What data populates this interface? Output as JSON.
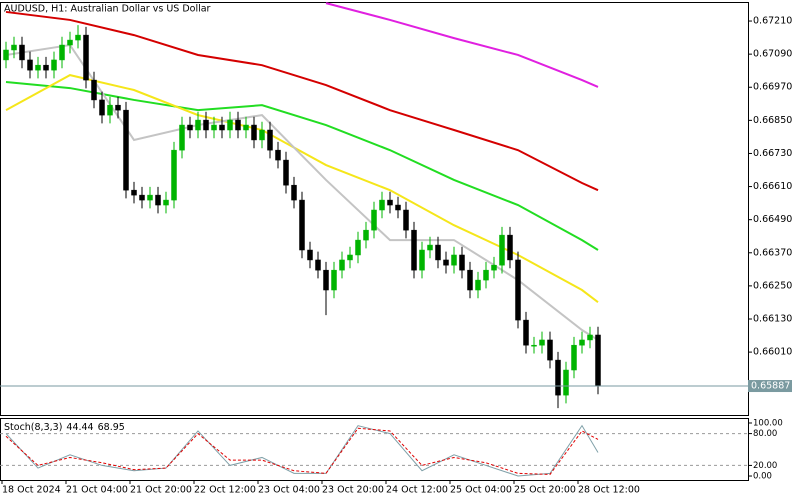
{
  "chart_data": [
    {
      "type": "candlestick",
      "title": "AUDUSD, H1:  Australian Dollar vs US Dollar",
      "categories": [
        "18 Oct 2024",
        null,
        null,
        null,
        null,
        null,
        null,
        null,
        "21 Oct 04:00",
        null,
        null,
        null,
        null,
        null,
        null,
        null,
        "21 Oct 20:00",
        null,
        null,
        null,
        null,
        null,
        null,
        null,
        "22 Oct 12:00",
        null,
        null,
        null,
        null,
        null,
        null,
        null,
        "23 Oct 04:00",
        null,
        null,
        null,
        null,
        null,
        null,
        null,
        "23 Oct 20:00",
        null,
        null,
        null,
        null,
        null,
        null,
        null,
        "24 Oct 12:00",
        null,
        null,
        null,
        null,
        null,
        null,
        null,
        "25 Oct 04:00",
        null,
        null,
        null,
        null,
        null,
        null,
        null,
        "25 Oct 20:00",
        null,
        null,
        null,
        null,
        null,
        null,
        null,
        "28 Oct 12:00",
        null,
        null
      ],
      "open": [
        0.67069,
        0.67105,
        0.67123,
        0.67069,
        0.67032,
        0.6705,
        0.67032,
        0.67069,
        0.67123,
        0.67141,
        0.67159,
        0.66996,
        0.66924,
        0.66869,
        0.66905,
        0.66887,
        0.66597,
        0.66579,
        0.66561,
        0.66579,
        0.66543,
        0.66561,
        0.66742,
        0.66833,
        0.66815,
        0.66851,
        0.66815,
        0.66833,
        0.66815,
        0.66851,
        0.66815,
        0.66833,
        0.66779,
        0.66815,
        0.66742,
        0.66706,
        0.66615,
        0.66561,
        0.6638,
        0.66344,
        0.66307,
        0.66235,
        0.66307,
        0.66344,
        0.66362,
        0.66416,
        0.66452,
        0.66525,
        0.66561,
        0.66543,
        0.66525,
        0.66452,
        0.66307,
        0.6638,
        0.66398,
        0.66344,
        0.66325,
        0.66362,
        0.66307,
        0.66235,
        0.66271,
        0.66307,
        0.66325,
        0.66434,
        0.66344,
        0.66126,
        0.66035,
        0.66035,
        0.66054,
        0.65981,
        0.65854,
        0.65945,
        0.66035,
        0.66054,
        0.66072
      ],
      "high": [
        0.67135,
        0.67153,
        0.67153,
        0.67099,
        0.6708,
        0.6708,
        0.67099,
        0.67153,
        0.67171,
        0.67195,
        0.67189,
        0.67026,
        0.66954,
        0.66935,
        0.66935,
        0.66917,
        0.66627,
        0.66609,
        0.66609,
        0.66609,
        0.66591,
        0.66772,
        0.66863,
        0.66863,
        0.66881,
        0.66881,
        0.66863,
        0.66863,
        0.66881,
        0.66881,
        0.66863,
        0.66863,
        0.66845,
        0.66845,
        0.66772,
        0.66736,
        0.66645,
        0.66591,
        0.6641,
        0.66374,
        0.66337,
        0.66337,
        0.66374,
        0.66392,
        0.66446,
        0.66482,
        0.66555,
        0.66591,
        0.66591,
        0.66573,
        0.66555,
        0.66482,
        0.6641,
        0.66428,
        0.66428,
        0.66374,
        0.66392,
        0.66392,
        0.66337,
        0.66301,
        0.66337,
        0.66355,
        0.66464,
        0.66464,
        0.66374,
        0.66156,
        0.66065,
        0.66084,
        0.66084,
        0.66011,
        0.65975,
        0.66065,
        0.66084,
        0.66102,
        0.66102
      ],
      "low": [
        0.67039,
        0.67075,
        0.67039,
        0.67002,
        0.67002,
        0.67002,
        0.67002,
        0.67039,
        0.67093,
        0.67111,
        0.66966,
        0.66894,
        0.66839,
        0.66839,
        0.66857,
        0.66567,
        0.66549,
        0.66531,
        0.66531,
        0.66513,
        0.66513,
        0.66531,
        0.66712,
        0.66785,
        0.66785,
        0.66785,
        0.66785,
        0.66785,
        0.66785,
        0.66785,
        0.66785,
        0.66749,
        0.66749,
        0.66712,
        0.66676,
        0.66585,
        0.66531,
        0.6635,
        0.66314,
        0.66277,
        0.66144,
        0.66205,
        0.66277,
        0.66314,
        0.66332,
        0.66386,
        0.66422,
        0.66495,
        0.66513,
        0.66495,
        0.66422,
        0.66277,
        0.66277,
        0.6635,
        0.66314,
        0.66295,
        0.66295,
        0.66277,
        0.66205,
        0.66205,
        0.66241,
        0.66277,
        0.66295,
        0.66314,
        0.66096,
        0.66005,
        0.66005,
        0.66005,
        0.65951,
        0.65807,
        0.65824,
        0.65915,
        0.66005,
        0.66024,
        0.65857
      ],
      "close": [
        0.67105,
        0.67123,
        0.67069,
        0.67032,
        0.6705,
        0.67032,
        0.67069,
        0.67123,
        0.67141,
        0.67159,
        0.66996,
        0.66924,
        0.66869,
        0.66905,
        0.66887,
        0.66597,
        0.66579,
        0.66561,
        0.66579,
        0.66543,
        0.66561,
        0.66742,
        0.66833,
        0.66815,
        0.66851,
        0.66815,
        0.66833,
        0.66815,
        0.66851,
        0.66815,
        0.66833,
        0.66779,
        0.66815,
        0.66742,
        0.66706,
        0.66615,
        0.66561,
        0.6638,
        0.66344,
        0.66307,
        0.66235,
        0.66307,
        0.66344,
        0.66362,
        0.66416,
        0.66452,
        0.66525,
        0.66561,
        0.66543,
        0.66525,
        0.66452,
        0.66307,
        0.6638,
        0.66398,
        0.66344,
        0.66325,
        0.66362,
        0.66307,
        0.66235,
        0.66271,
        0.66307,
        0.66325,
        0.66434,
        0.66344,
        0.66126,
        0.66035,
        0.66035,
        0.66054,
        0.65981,
        0.65854,
        0.65945,
        0.66035,
        0.66054,
        0.66072,
        0.65887
      ],
      "up_color": "#00b400",
      "down_color": "#000000",
      "series": [
        {
          "color": "#e020e0",
          "x": [
            40,
            48,
            56,
            64,
            72,
            74
          ],
          "values": [
            0.67275,
            0.67214,
            0.67148,
            0.67087,
            0.66996,
            0.66971
          ]
        },
        {
          "color": "#d40000",
          "x": [
            0,
            8,
            16,
            24,
            32,
            40,
            48,
            56,
            64,
            72,
            74
          ],
          "values": [
            0.67243,
            0.67214,
            0.67159,
            0.67087,
            0.6705,
            0.66978,
            0.66887,
            0.66815,
            0.66742,
            0.66623,
            0.66597
          ]
        },
        {
          "color": "#22dd22",
          "x": [
            0,
            8,
            16,
            24,
            32,
            40,
            48,
            56,
            64,
            72,
            74
          ],
          "values": [
            0.66989,
            0.66967,
            0.66924,
            0.66887,
            0.66905,
            0.66833,
            0.66742,
            0.66634,
            0.66543,
            0.66416,
            0.6638
          ]
        },
        {
          "color": "#f5e61a",
          "x": [
            0,
            8,
            16,
            24,
            32,
            40,
            48,
            56,
            64,
            72,
            74
          ],
          "values": [
            0.66887,
            0.67014,
            0.6696,
            0.66869,
            0.66815,
            0.66688,
            0.66597,
            0.6647,
            0.66362,
            0.66235,
            0.66191
          ]
        },
        {
          "color": "#c4c4c4",
          "x": [
            0,
            8,
            16,
            24,
            32,
            40,
            48,
            56,
            64,
            72,
            74
          ],
          "values": [
            0.67087,
            0.67123,
            0.66779,
            0.66833,
            0.66869,
            0.66634,
            0.66416,
            0.66416,
            0.66271,
            0.6609,
            0.66054
          ]
        }
      ],
      "last_price": {
        "value": 0.65887,
        "label": "0.65887"
      },
      "ylim": [
        0.65782,
        0.67279
      ],
      "yticks": [
        {
          "value": 0.6721,
          "label": "0.67210"
        },
        {
          "value": 0.6709,
          "label": "0.67090"
        },
        {
          "value": 0.6697,
          "label": "0.66970"
        },
        {
          "value": 0.6685,
          "label": "0.66850"
        },
        {
          "value": 0.6673,
          "label": "0.66730"
        },
        {
          "value": 0.6661,
          "label": "0.66610"
        },
        {
          "value": 0.6649,
          "label": "0.66490"
        },
        {
          "value": 0.6637,
          "label": "0.66370"
        },
        {
          "value": 0.6625,
          "label": "0.66250"
        },
        {
          "value": 0.6613,
          "label": "0.66130"
        },
        {
          "value": 0.6601,
          "label": "0.66010"
        }
      ]
    },
    {
      "type": "line",
      "title": "Stoch(8,3,3)",
      "series": [
        {
          "color": "#7fa0a8",
          "x": [
            0,
            4,
            8,
            12,
            16,
            20,
            24,
            28,
            32,
            36,
            40,
            44,
            48,
            52,
            56,
            60,
            64,
            68,
            72,
            74
          ],
          "values": [
            80,
            15,
            40,
            20,
            10,
            15,
            85,
            20,
            35,
            5,
            5,
            95,
            80,
            10,
            40,
            20,
            0,
            5,
            95,
            44.44
          ]
        },
        {
          "color": "#e00000",
          "dashed": true,
          "x": [
            0,
            4,
            8,
            12,
            16,
            20,
            24,
            28,
            32,
            36,
            40,
            44,
            48,
            52,
            56,
            60,
            64,
            68,
            72,
            74
          ],
          "values": [
            75,
            20,
            35,
            25,
            12,
            15,
            80,
            30,
            30,
            10,
            5,
            90,
            85,
            20,
            35,
            25,
            5,
            3,
            85,
            68.95
          ]
        }
      ],
      "levels": [
        80,
        20
      ],
      "ylim": [
        -7.5,
        109.4
      ],
      "yticks": [
        {
          "value": 100,
          "label": "100.00"
        },
        {
          "value": 80,
          "label": "80.00"
        },
        {
          "value": 20,
          "label": "20.00"
        },
        {
          "value": 0,
          "label": "0.00"
        }
      ]
    }
  ]
}
